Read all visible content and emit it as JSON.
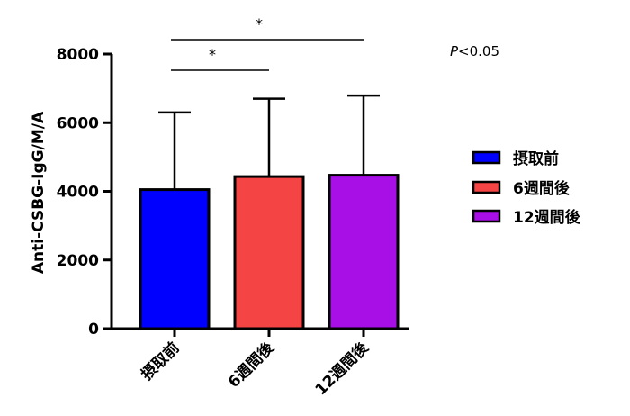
{
  "chart_data": {
    "type": "bar",
    "categories": [
      "摂取前",
      "6週間後",
      "12週間後"
    ],
    "series": [
      {
        "name": "",
        "values": [
          4050,
          4430,
          4470
        ],
        "error_upper": [
          2250,
          2270,
          2320
        ]
      }
    ],
    "bar_colors": [
      "#0000ff",
      "#f44444",
      "#a80ee6"
    ],
    "ylabel": "Anti-CSBG-IgG/M/A",
    "ylim": [
      0,
      8000
    ],
    "yticks": [
      0,
      2000,
      4000,
      6000,
      8000
    ],
    "grid": false,
    "legend": {
      "placement": "right",
      "entries": [
        "摂取前",
        "6週間後",
        "12週間後"
      ]
    },
    "significance": [
      {
        "from": 0,
        "to": 1,
        "label": "*"
      },
      {
        "from": 0,
        "to": 2,
        "label": "*"
      }
    ],
    "annotation": {
      "italic": "P",
      "rest": "<0.05"
    }
  }
}
